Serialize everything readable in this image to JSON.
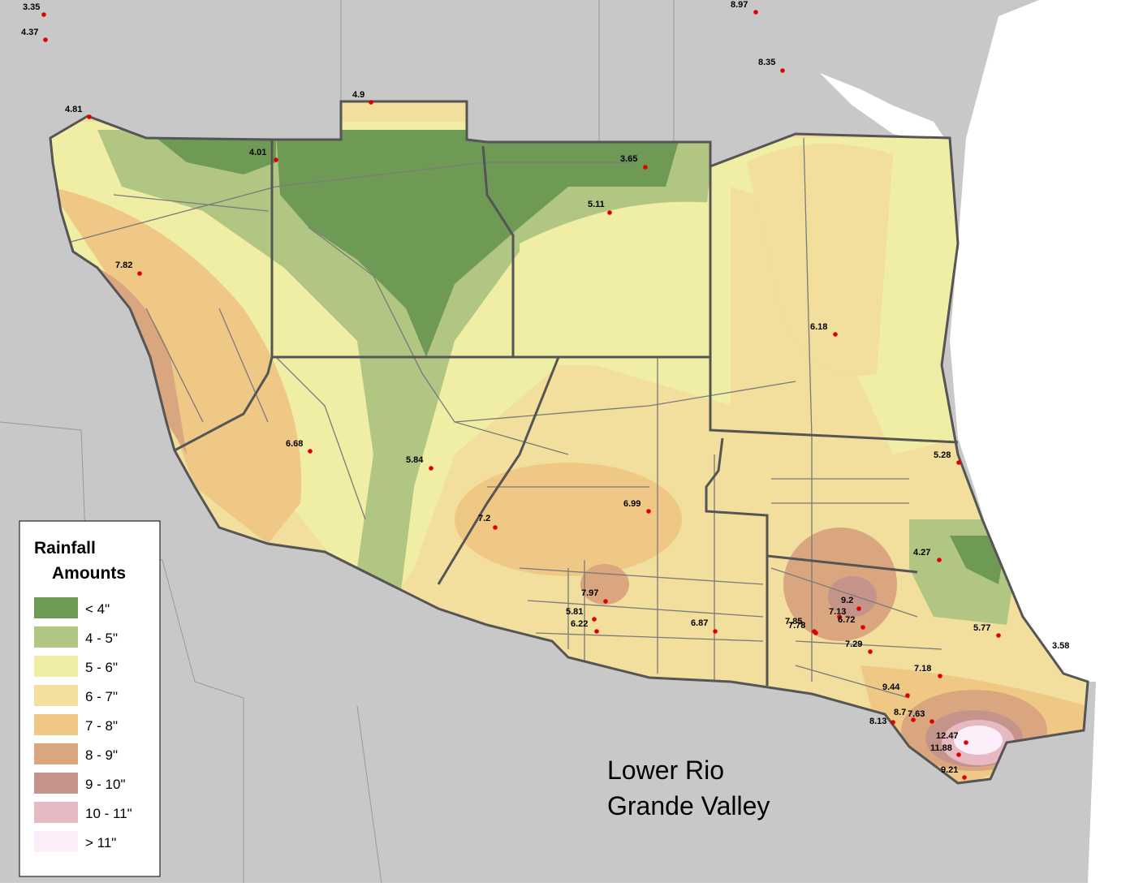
{
  "legend": {
    "title_line1": "Rainfall",
    "title_line2": "Amounts",
    "items": [
      "< 4\"",
      "4 - 5\"",
      "5 - 6\"",
      "6 - 7\"",
      "7 - 8\"",
      "8 - 9\"",
      "9 - 10\"",
      "10 - 11\"",
      "> 11\""
    ]
  },
  "map_title": [
    "Lower Rio",
    "Grande Valley"
  ],
  "stations": [
    "3.35",
    "4.37",
    "4.81",
    "4.9",
    "4.01",
    "3.65",
    "5.11",
    "8.97",
    "8.35",
    "7.82",
    "6.18",
    "6.68",
    "5.84",
    "7.2",
    "6.99",
    "5.28",
    "4.27",
    "7.97",
    "5.81",
    "6.22",
    "6.87",
    "9.2",
    "7.13",
    "6.72",
    "7.85",
    "7.78",
    "7.29",
    "5.77",
    "3.58",
    "7.18",
    "9.44",
    "8.7",
    "7.63",
    "8.13",
    "12.47",
    "11.88",
    "9.21"
  ]
}
